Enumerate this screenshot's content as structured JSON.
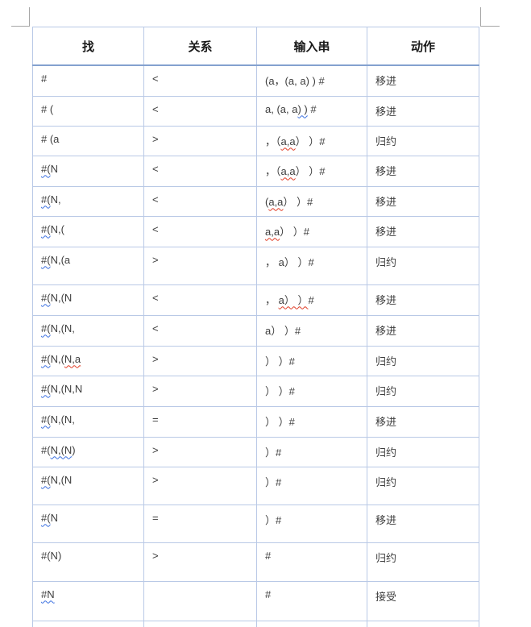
{
  "colors": {
    "table_border": "#b9c9e6",
    "header_rule": "#84a1cf",
    "grammar_squiggle_blue": "#3a6fe0",
    "spelling_squiggle_red": "#e03b24"
  },
  "table": {
    "headers": [
      {
        "key": "stack",
        "label": "找"
      },
      {
        "key": "relation",
        "label": "关系"
      },
      {
        "key": "input",
        "label": "输入串"
      },
      {
        "key": "action",
        "label": "动作"
      }
    ],
    "rows": [
      {
        "stack": [
          {
            "t": "#"
          }
        ],
        "relation": "<",
        "input": [
          {
            "t": "(a，(a, a) ) #"
          }
        ],
        "action": "移进"
      },
      {
        "stack": [
          {
            "t": "# ("
          }
        ],
        "relation": "<",
        "input": [
          {
            "t": "a, (a, a"
          },
          {
            "t": ") )",
            "u": "blue"
          },
          {
            "t": " #"
          }
        ],
        "action": "移进"
      },
      {
        "stack": [
          {
            "t": "# (a"
          }
        ],
        "relation": ">",
        "input": [
          {
            "t": "，（"
          },
          {
            "t": "a,a",
            "u": "red"
          },
          {
            "t": "） ）#"
          }
        ],
        "action": "归约"
      },
      {
        "stack": [
          {
            "t": "#(",
            "u": "blue"
          },
          {
            "t": "N"
          }
        ],
        "relation": "<",
        "input": [
          {
            "t": "，（"
          },
          {
            "t": "a,a",
            "u": "red"
          },
          {
            "t": "） ）#"
          }
        ],
        "action": "移进"
      },
      {
        "stack": [
          {
            "t": "#(",
            "u": "blue"
          },
          {
            "t": "N,"
          }
        ],
        "relation": "<",
        "input": [
          {
            "t": "("
          },
          {
            "t": "a,a",
            "u": "red"
          },
          {
            "t": "） ）#"
          }
        ],
        "action": "移进"
      },
      {
        "stack": [
          {
            "t": "#(",
            "u": "blue"
          },
          {
            "t": "N,("
          }
        ],
        "relation": "<",
        "input": [
          {
            "t": "a,a",
            "u": "red"
          },
          {
            "t": "） ）#"
          }
        ],
        "action": "移进"
      },
      {
        "stack": [
          {
            "t": "#(",
            "u": "blue"
          },
          {
            "t": "N,(a"
          }
        ],
        "relation": ">",
        "input": [
          {
            "t": "， a） ）#"
          }
        ],
        "action": "归约"
      },
      {
        "stack": [
          {
            "t": "#(",
            "u": "blue"
          },
          {
            "t": "N,(N"
          }
        ],
        "relation": "<",
        "input": [
          {
            "t": "， "
          },
          {
            "t": "a） ）",
            "u": "red"
          },
          {
            "t": "#"
          }
        ],
        "action": "移进"
      },
      {
        "stack": [
          {
            "t": "#(",
            "u": "blue"
          },
          {
            "t": "N,(N,"
          }
        ],
        "relation": "<",
        "input": [
          {
            "t": "a） ）#"
          }
        ],
        "action": "移进"
      },
      {
        "stack": [
          {
            "t": "#(",
            "u": "blue"
          },
          {
            "t": "N,("
          },
          {
            "t": "N,a",
            "u": "red"
          }
        ],
        "relation": ">",
        "input": [
          {
            "t": "） ）#"
          }
        ],
        "action": "归约"
      },
      {
        "stack": [
          {
            "t": "#(",
            "u": "blue"
          },
          {
            "t": "N,(N,N"
          }
        ],
        "relation": ">",
        "input": [
          {
            "t": "） ）#"
          }
        ],
        "action": "归约"
      },
      {
        "stack": [
          {
            "t": "#(",
            "u": "blue"
          },
          {
            "t": "N,(N,"
          }
        ],
        "relation": "=",
        "input": [
          {
            "t": "） ）#"
          }
        ],
        "action": "移进"
      },
      {
        "stack": [
          {
            "t": "#("
          },
          {
            "t": "N,(N",
            "u": "blue"
          },
          {
            "t": ")"
          }
        ],
        "relation": ">",
        "input": [
          {
            "t": "）#"
          }
        ],
        "action": "归约"
      },
      {
        "stack": [
          {
            "t": "#(",
            "u": "blue"
          },
          {
            "t": "N,(N"
          }
        ],
        "relation": ">",
        "input": [
          {
            "t": "）#"
          }
        ],
        "action": "归约"
      },
      {
        "stack": [
          {
            "t": "#(",
            "u": "blue"
          },
          {
            "t": "N"
          }
        ],
        "relation": "=",
        "input": [
          {
            "t": "）#"
          }
        ],
        "action": "移进"
      },
      {
        "stack": [
          {
            "t": "#(N)"
          }
        ],
        "relation": ">",
        "input": [
          {
            "t": "#"
          }
        ],
        "action": "归约"
      },
      {
        "stack": [
          {
            "t": "#N",
            "u": "blue"
          }
        ],
        "relation": "",
        "input": [
          {
            "t": "#"
          }
        ],
        "action": "接受"
      }
    ]
  }
}
